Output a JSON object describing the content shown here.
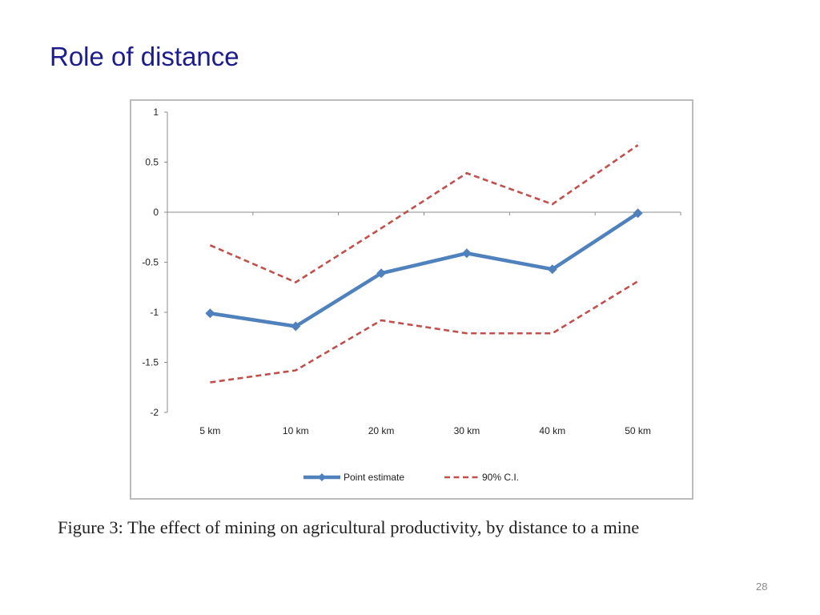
{
  "slide": {
    "title": "Role of distance",
    "caption": "Figure 3:  The effect of mining on agricultural productivity, by distance to a mine",
    "page_number": "28"
  },
  "colors": {
    "title": "#1c1c8c",
    "point_estimate": "#4f81bd",
    "ci": "#c0504d",
    "axis": "#8c8c8c"
  },
  "chart_data": {
    "type": "line",
    "title": "",
    "xlabel": "",
    "ylabel": "",
    "categories": [
      "5 km",
      "10 km",
      "20 km",
      "30 km",
      "40 km",
      "50 km"
    ],
    "ylim": [
      -2,
      1
    ],
    "yticks": [
      1,
      0.5,
      0,
      -0.5,
      -1,
      -1.5,
      -2
    ],
    "ytick_labels": [
      "1",
      "0.5",
      "0",
      "-0.5",
      "-1",
      "-1.5",
      "-2"
    ],
    "grid": false,
    "legend_position": "bottom",
    "series": [
      {
        "name": "Point estimate",
        "style": "solid-marker",
        "values": [
          -1.01,
          -1.14,
          -0.61,
          -0.41,
          -0.57,
          -0.01
        ]
      },
      {
        "name": "90% C.I.",
        "style": "dashed",
        "values": [
          -0.33,
          -0.7,
          -0.16,
          0.39,
          0.08,
          0.67
        ]
      },
      {
        "name": "90% C.I.",
        "style": "dashed",
        "legend": false,
        "values": [
          -1.7,
          -1.58,
          -1.08,
          -1.21,
          -1.21,
          -0.69
        ]
      }
    ]
  }
}
